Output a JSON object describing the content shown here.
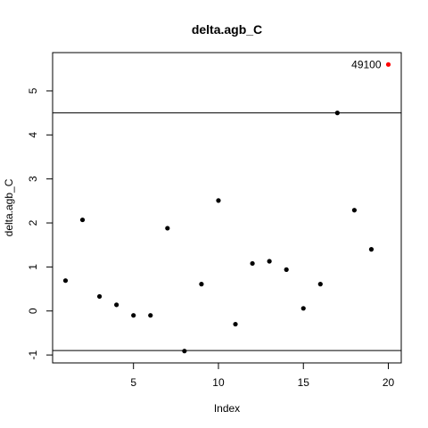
{
  "chart_data": {
    "type": "scatter",
    "title": "delta.agb_C",
    "xlabel": "Index",
    "ylabel": "delta.agb_C",
    "xlim": [
      0.24,
      20.76
    ],
    "ylim": [
      -1.18,
      5.87
    ],
    "x_ticks": [
      5,
      10,
      15,
      20
    ],
    "y_ticks": [
      -1,
      0,
      1,
      2,
      3,
      4,
      5
    ],
    "series": [
      {
        "x": [
          1,
          2,
          3,
          4,
          5,
          6,
          7,
          8,
          9,
          10,
          11,
          12,
          13,
          14,
          15,
          16,
          17,
          18,
          19,
          20
        ],
        "y": [
          0.69,
          2.07,
          0.33,
          0.14,
          -0.1,
          -0.1,
          1.88,
          -0.91,
          0.61,
          2.51,
          -0.3,
          1.08,
          1.13,
          0.94,
          0.06,
          0.61,
          4.5,
          2.29,
          1.4,
          5.6
        ],
        "color": "#000000"
      }
    ],
    "highlight": {
      "index": 20,
      "color": "#ff0000"
    },
    "hlines": [
      4.5,
      -0.9
    ],
    "annotations": [
      {
        "x": 20,
        "y": 5.6,
        "text": "49100"
      }
    ],
    "grid": false,
    "legend": false
  }
}
